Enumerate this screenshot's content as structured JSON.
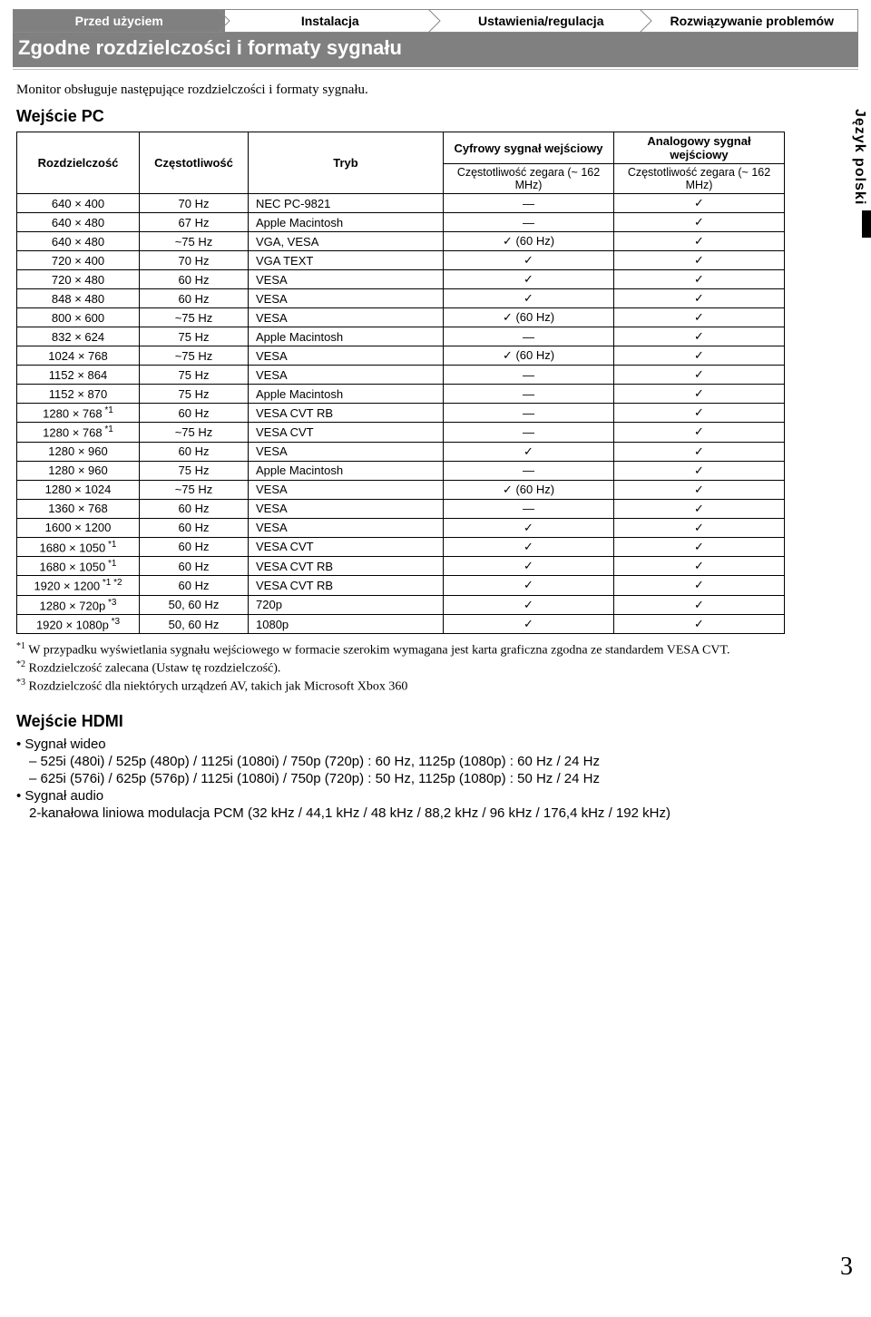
{
  "tabs": [
    "Przed użyciem",
    "Instalacja",
    "Ustawienia/regulacja",
    "Rozwiązywanie problemów"
  ],
  "title": "Zgodne rozdzielczości i formaty sygnału",
  "intro": "Monitor obsługuje następujące rozdzielczości i formaty sygnału.",
  "pc_input_heading": "Wejście PC",
  "side_label": "Język polski",
  "table": {
    "col_headers": {
      "resolution": "Rozdzielczość",
      "frequency": "Częstotliwość",
      "mode": "Tryb",
      "digital_top": "Cyfrowy sygnał wejściowy",
      "digital_sub": "Częstotliwość zegara (~ 162 MHz)",
      "analog_top": "Analogowy sygnał wejściowy",
      "analog_sub": "Częstotliwość zegara (~ 162 MHz)"
    },
    "rows": [
      {
        "res": "640 × 400",
        "freq": "70 Hz",
        "mode": "NEC PC-9821",
        "dig": "—",
        "ana": "✓"
      },
      {
        "res": "640 × 480",
        "freq": "67 Hz",
        "mode": "Apple Macintosh",
        "dig": "—",
        "ana": "✓"
      },
      {
        "res": "640 × 480",
        "freq": "~75 Hz",
        "mode": "VGA, VESA",
        "dig": "✓ (60 Hz)",
        "ana": "✓"
      },
      {
        "res": "720 × 400",
        "freq": "70 Hz",
        "mode": "VGA TEXT",
        "dig": "✓",
        "ana": "✓"
      },
      {
        "res": "720 × 480",
        "freq": "60 Hz",
        "mode": "VESA",
        "dig": "✓",
        "ana": "✓"
      },
      {
        "res": "848 × 480",
        "freq": "60 Hz",
        "mode": "VESA",
        "dig": "✓",
        "ana": "✓"
      },
      {
        "res": "800 × 600",
        "freq": "~75 Hz",
        "mode": "VESA",
        "dig": "✓ (60 Hz)",
        "ana": "✓"
      },
      {
        "res": "832 × 624",
        "freq": "75 Hz",
        "mode": "Apple Macintosh",
        "dig": "—",
        "ana": "✓"
      },
      {
        "res": "1024 × 768",
        "freq": "~75 Hz",
        "mode": "VESA",
        "dig": "✓ (60 Hz)",
        "ana": "✓"
      },
      {
        "res": "1152 × 864",
        "freq": "75 Hz",
        "mode": "VESA",
        "dig": "—",
        "ana": "✓"
      },
      {
        "res": "1152 × 870",
        "freq": "75 Hz",
        "mode": "Apple Macintosh",
        "dig": "—",
        "ana": "✓"
      },
      {
        "res": "1280 × 768",
        "sup": "*1",
        "freq": "60 Hz",
        "mode": "VESA CVT RB",
        "dig": "—",
        "ana": "✓"
      },
      {
        "res": "1280 × 768",
        "sup": "*1",
        "freq": "~75 Hz",
        "mode": "VESA CVT",
        "dig": "—",
        "ana": "✓"
      },
      {
        "res": "1280 × 960",
        "freq": "60 Hz",
        "mode": "VESA",
        "dig": "✓",
        "ana": "✓"
      },
      {
        "res": "1280 × 960",
        "freq": "75 Hz",
        "mode": "Apple Macintosh",
        "dig": "—",
        "ana": "✓"
      },
      {
        "res": "1280 × 1024",
        "freq": "~75 Hz",
        "mode": "VESA",
        "dig": "✓ (60 Hz)",
        "ana": "✓"
      },
      {
        "res": "1360 × 768",
        "freq": "60 Hz",
        "mode": "VESA",
        "dig": "—",
        "ana": "✓"
      },
      {
        "res": "1600 × 1200",
        "freq": "60 Hz",
        "mode": "VESA",
        "dig": "✓",
        "ana": "✓"
      },
      {
        "res": "1680 × 1050",
        "sup": "*1",
        "freq": "60 Hz",
        "mode": "VESA CVT",
        "dig": "✓",
        "ana": "✓"
      },
      {
        "res": "1680 × 1050",
        "sup": "*1",
        "freq": "60 Hz",
        "mode": "VESA CVT RB",
        "dig": "✓",
        "ana": "✓"
      },
      {
        "res": "1920 × 1200",
        "sup": "*1 *2",
        "freq": "60 Hz",
        "mode": "VESA CVT RB",
        "dig": "✓",
        "ana": "✓"
      },
      {
        "res": "1280 × 720p",
        "sup": "*3",
        "freq": "50, 60 Hz",
        "mode": "720p",
        "dig": "✓",
        "ana": "✓"
      },
      {
        "res": "1920 × 1080p",
        "sup": "*3",
        "freq": "50, 60 Hz",
        "mode": "1080p",
        "dig": "✓",
        "ana": "✓"
      }
    ]
  },
  "footnotes": {
    "n1": "*1 W przypadku wyświetlania sygnału wejściowego w formacie szerokim wymagana jest karta graficzna zgodna ze standardem VESA CVT.",
    "n2": "*2 Rozdzielczość zalecana (Ustaw tę rozdzielczość).",
    "n3": "*3 Rozdzielczość dla niektórych urządzeń AV, takich jak Microsoft Xbox 360"
  },
  "hdmi": {
    "heading": "Wejście HDMI",
    "video_label": "•  Sygnał wideo",
    "video_line1": "– 525i (480i) / 525p (480p) / 1125i (1080i) / 750p (720p) : 60 Hz, 1125p (1080p) : 60 Hz / 24 Hz",
    "video_line2": "– 625i (576i) / 625p (576p) / 1125i (1080i) / 750p (720p) : 50 Hz, 1125p (1080p) : 50 Hz / 24 Hz",
    "audio_label": "•  Sygnał audio",
    "audio_line": "2-kanałowa liniowa modulacja PCM (32 kHz / 44,1 kHz / 48 kHz / 88,2 kHz / 96 kHz / 176,4 kHz / 192 kHz)"
  },
  "page_number": "3"
}
